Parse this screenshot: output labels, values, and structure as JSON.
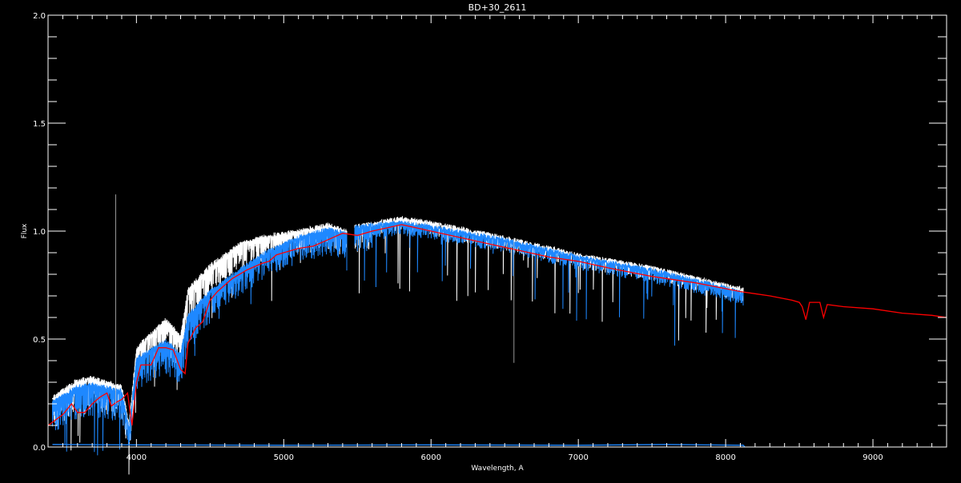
{
  "chart_data": {
    "type": "line",
    "title": "BD+30_2611",
    "xlabel": "Wavelength, A",
    "ylabel": "Flux",
    "xlim": [
      3400,
      9500
    ],
    "ylim": [
      0.0,
      2.0
    ],
    "xticks": [
      4000,
      5000,
      6000,
      7000,
      8000,
      9000
    ],
    "xtick_labels": [
      "4000",
      "5000",
      "6000",
      "7000",
      "8000",
      "9000"
    ],
    "yticks": [
      0.0,
      0.5,
      1.0,
      1.5,
      2.0
    ],
    "ytick_labels": [
      "0.0",
      "0.5",
      "1.0",
      "1.5",
      "2.0"
    ],
    "x_minor_step": 100,
    "y_minor_step": 0.1,
    "grid": false,
    "background": "#000000",
    "series": [
      {
        "color": "#ffffff",
        "style": "spectrum",
        "points": [
          [
            3430,
            0.24
          ],
          [
            3600,
            0.32
          ],
          [
            3700,
            0.33
          ],
          [
            3900,
            0.29
          ],
          [
            3950,
            0.12
          ],
          [
            4000,
            0.47
          ],
          [
            4200,
            0.6
          ],
          [
            4300,
            0.52
          ],
          [
            4350,
            0.74
          ],
          [
            4500,
            0.85
          ],
          [
            4700,
            0.95
          ],
          [
            4900,
            0.99
          ],
          [
            5100,
            1.01
          ],
          [
            5300,
            1.04
          ],
          [
            5430,
            1.01
          ],
          [
            5480,
            1.03
          ],
          [
            5800,
            1.07
          ],
          [
            6000,
            1.05
          ],
          [
            6500,
            0.98
          ],
          [
            7000,
            0.9
          ],
          [
            7500,
            0.84
          ],
          [
            8000,
            0.76
          ],
          [
            8120,
            0.74
          ]
        ]
      },
      {
        "color": "#1e88ff",
        "style": "spectrum",
        "points": [
          [
            3430,
            0.22
          ],
          [
            3600,
            0.29
          ],
          [
            3700,
            0.3
          ],
          [
            3900,
            0.27
          ],
          [
            3950,
            0.1
          ],
          [
            4000,
            0.42
          ],
          [
            4200,
            0.5
          ],
          [
            4300,
            0.44
          ],
          [
            4350,
            0.62
          ],
          [
            4500,
            0.73
          ],
          [
            4700,
            0.83
          ],
          [
            4900,
            0.92
          ],
          [
            5100,
            0.98
          ],
          [
            5300,
            1.02
          ],
          [
            5430,
            1.0
          ],
          [
            5480,
            1.03
          ],
          [
            5800,
            1.05
          ],
          [
            6000,
            1.03
          ],
          [
            6500,
            0.97
          ],
          [
            7000,
            0.89
          ],
          [
            7500,
            0.83
          ],
          [
            8000,
            0.75
          ],
          [
            8120,
            0.72
          ]
        ]
      },
      {
        "color": "#1e88ff",
        "style": "line",
        "points": [
          [
            3430,
            0.012
          ],
          [
            4000,
            0.01
          ],
          [
            5000,
            0.008
          ],
          [
            6000,
            0.01
          ],
          [
            7000,
            0.008
          ],
          [
            7600,
            0.012
          ],
          [
            8120,
            0.008
          ],
          [
            8130,
            0.0
          ]
        ]
      },
      {
        "color": "#ff0000",
        "style": "line",
        "points": [
          [
            3400,
            0.1
          ],
          [
            3500,
            0.15
          ],
          [
            3560,
            0.2
          ],
          [
            3600,
            0.16
          ],
          [
            3650,
            0.16
          ],
          [
            3700,
            0.2
          ],
          [
            3750,
            0.23
          ],
          [
            3800,
            0.25
          ],
          [
            3830,
            0.19
          ],
          [
            3870,
            0.21
          ],
          [
            3900,
            0.22
          ],
          [
            3940,
            0.25
          ],
          [
            3970,
            0.1
          ],
          [
            4000,
            0.3
          ],
          [
            4030,
            0.38
          ],
          [
            4100,
            0.38
          ],
          [
            4150,
            0.46
          ],
          [
            4200,
            0.46
          ],
          [
            4250,
            0.45
          ],
          [
            4300,
            0.36
          ],
          [
            4330,
            0.34
          ],
          [
            4350,
            0.48
          ],
          [
            4400,
            0.55
          ],
          [
            4450,
            0.58
          ],
          [
            4500,
            0.68
          ],
          [
            4550,
            0.72
          ],
          [
            4650,
            0.78
          ],
          [
            4750,
            0.82
          ],
          [
            4850,
            0.85
          ],
          [
            4900,
            0.86
          ],
          [
            4950,
            0.89
          ],
          [
            5000,
            0.9
          ],
          [
            5100,
            0.92
          ],
          [
            5200,
            0.93
          ],
          [
            5300,
            0.96
          ],
          [
            5400,
            0.99
          ],
          [
            5500,
            0.98
          ],
          [
            5600,
            1.0
          ],
          [
            5800,
            1.03
          ],
          [
            6000,
            1.0
          ],
          [
            6200,
            0.97
          ],
          [
            6400,
            0.94
          ],
          [
            6600,
            0.91
          ],
          [
            6800,
            0.88
          ],
          [
            7000,
            0.86
          ],
          [
            7200,
            0.83
          ],
          [
            7500,
            0.79
          ],
          [
            7800,
            0.76
          ],
          [
            8100,
            0.72
          ],
          [
            8200,
            0.71
          ],
          [
            8300,
            0.7
          ],
          [
            8450,
            0.68
          ],
          [
            8500,
            0.67
          ],
          [
            8520,
            0.65
          ],
          [
            8545,
            0.59
          ],
          [
            8570,
            0.67
          ],
          [
            8640,
            0.67
          ],
          [
            8665,
            0.6
          ],
          [
            8690,
            0.66
          ],
          [
            8800,
            0.65
          ],
          [
            9000,
            0.64
          ],
          [
            9200,
            0.62
          ],
          [
            9400,
            0.61
          ],
          [
            9500,
            0.6
          ]
        ]
      },
      {
        "color": "#bbbbbb",
        "style": "vline",
        "points": [
          [
            3860,
            0.2
          ],
          [
            3860,
            1.17
          ]
        ]
      },
      {
        "color": "#bbbbbb",
        "style": "vline",
        "points": [
          [
            6563,
            0.95
          ],
          [
            6563,
            0.39
          ]
        ]
      }
    ]
  }
}
